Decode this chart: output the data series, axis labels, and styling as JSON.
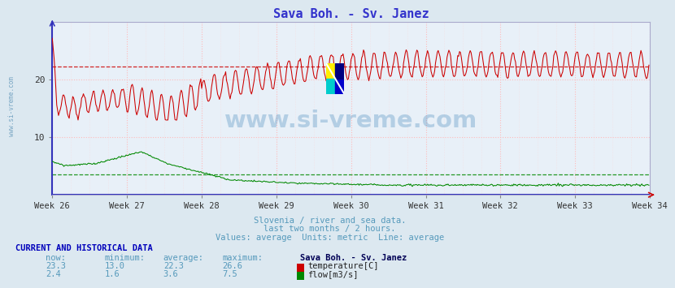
{
  "title": "Sava Boh. - Sv. Janez",
  "title_color": "#3333cc",
  "bg_color": "#dce8f0",
  "plot_bg_color": "#e8f0f8",
  "grid_color_h": "#ffaaaa",
  "grid_color_v": "#ffaaaa",
  "x_tick_labels": [
    "Week 26",
    "Week 27",
    "Week 28",
    "Week 29",
    "Week 30",
    "Week 31",
    "Week 32",
    "Week 33",
    "Week 34"
  ],
  "y_ticks": [
    10,
    20
  ],
  "ylim": [
    0,
    30
  ],
  "xlim_end": 672,
  "temp_color": "#cc0000",
  "flow_color": "#008800",
  "temp_avg_line": 22.3,
  "flow_avg_line": 3.6,
  "subtitle_lines": [
    "Slovenia / river and sea data.",
    "last two months / 2 hours.",
    "Values: average  Units: metric  Line: average"
  ],
  "subtitle_color": "#5599bb",
  "table_header": "CURRENT AND HISTORICAL DATA",
  "table_header_color": "#0000bb",
  "col_headers": [
    "now:",
    "minimum:",
    "average:",
    "maximum:",
    "Sava Boh. - Sv. Janez"
  ],
  "temp_values": [
    "23.3",
    "13.0",
    "22.3",
    "26.6"
  ],
  "flow_values": [
    "2.4",
    "1.6",
    "3.6",
    "7.5"
  ],
  "temp_label": "temperature[C]",
  "flow_label": "flow[m3/s]",
  "watermark": "www.si-vreme.com",
  "watermark_color": "#4488bb",
  "side_label": "www.si-vreme.com",
  "side_label_color": "#6699bb",
  "n_points": 672,
  "points_per_week": 84,
  "spine_color": "#5555cc",
  "tick_color": "#333333"
}
